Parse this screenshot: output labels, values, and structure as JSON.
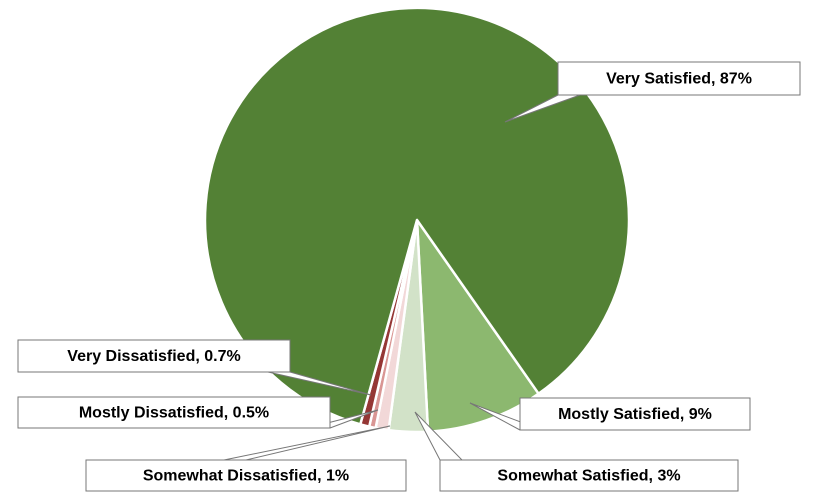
{
  "chart_data": {
    "type": "pie",
    "categories": [
      "Mostly Satisfied",
      "Somewhat Satisfied",
      "Somewhat Dissatisfied",
      "Mostly Dissatisfied",
      "Very Dissatisfied",
      "Very Satisfied"
    ],
    "values": [
      9,
      3,
      1,
      0.5,
      0.7,
      87
    ],
    "value_labels": [
      "Mostly Satisfied, 9%",
      "Somewhat Satisfied, 3%",
      "Somewhat Dissatisfied, 1%",
      "Mostly Dissatisfied, 0.5%",
      "Very Dissatisfied, 0.7%",
      "Very Satisfied, 87%"
    ],
    "colors": [
      "#8cb86f",
      "#d2e2c8",
      "#f2d8d8",
      "#d99694",
      "#953735",
      "#538135"
    ]
  }
}
